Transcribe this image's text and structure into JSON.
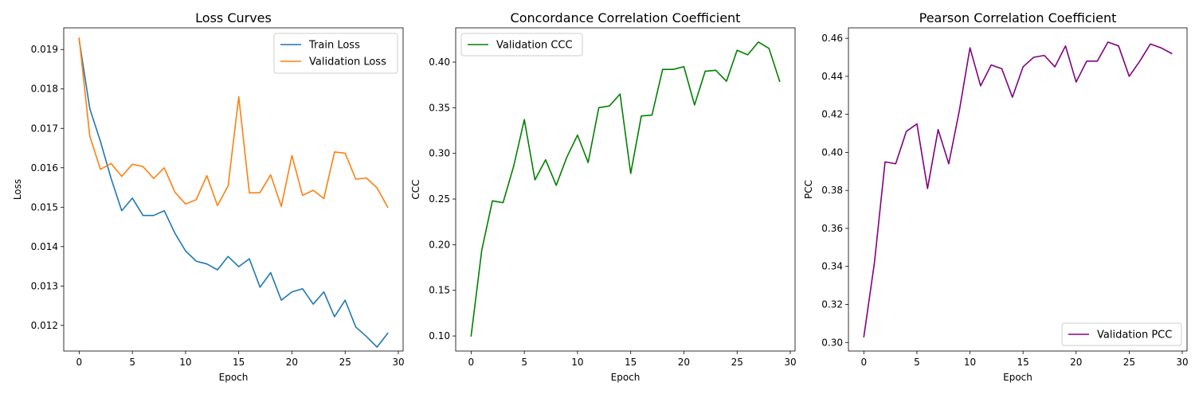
{
  "chart_data": [
    {
      "type": "line",
      "title": "Loss Curves",
      "xlabel": "Epoch",
      "ylabel": "Loss",
      "xlim": [
        -1.45,
        30.45
      ],
      "ylim": [
        0.01135,
        0.01955
      ],
      "xticks": [
        0,
        5,
        10,
        15,
        20,
        25,
        30
      ],
      "yticks": [
        0.012,
        0.013,
        0.014,
        0.015,
        0.016,
        0.017,
        0.018,
        0.019
      ],
      "ytick_decimals": 3,
      "grid": false,
      "legend_position": "top-right",
      "x": [
        0,
        1,
        2,
        3,
        4,
        5,
        6,
        7,
        8,
        9,
        10,
        11,
        12,
        13,
        14,
        15,
        16,
        17,
        18,
        19,
        20,
        21,
        22,
        23,
        24,
        25,
        26,
        27,
        28,
        29
      ],
      "series": [
        {
          "name": "Train Loss",
          "color": "#1f77b4",
          "values": [
            0.01925,
            0.0175,
            0.01667,
            0.01573,
            0.01491,
            0.01523,
            0.01479,
            0.01479,
            0.01491,
            0.01434,
            0.01389,
            0.01363,
            0.01356,
            0.01341,
            0.01375,
            0.01349,
            0.01369,
            0.01297,
            0.01334,
            0.01264,
            0.01285,
            0.01293,
            0.01254,
            0.01285,
            0.01222,
            0.01264,
            0.01196,
            0.01172,
            0.01145,
            0.0118
          ]
        },
        {
          "name": "Validation Loss",
          "color": "#ff7f0e",
          "values": [
            0.01929,
            0.0168,
            0.01596,
            0.01611,
            0.01578,
            0.01609,
            0.01603,
            0.01573,
            0.016,
            0.01538,
            0.01508,
            0.01519,
            0.0158,
            0.01504,
            0.01554,
            0.0178,
            0.01536,
            0.01537,
            0.01582,
            0.01502,
            0.01631,
            0.0153,
            0.01543,
            0.01522,
            0.0164,
            0.01637,
            0.01571,
            0.01574,
            0.01549,
            0.015
          ]
        }
      ]
    },
    {
      "type": "line",
      "title": "Concordance Correlation Coefficient",
      "xlabel": "Epoch",
      "ylabel": "CCC",
      "xlim": [
        -1.45,
        30.45
      ],
      "ylim": [
        0.0835,
        0.4375
      ],
      "xticks": [
        0,
        5,
        10,
        15,
        20,
        25,
        30
      ],
      "yticks": [
        0.1,
        0.15,
        0.2,
        0.25,
        0.3,
        0.35,
        0.4
      ],
      "ytick_decimals": 2,
      "grid": false,
      "legend_position": "top-left",
      "x": [
        0,
        1,
        2,
        3,
        4,
        5,
        6,
        7,
        8,
        9,
        10,
        11,
        12,
        13,
        14,
        15,
        16,
        17,
        18,
        19,
        20,
        21,
        22,
        23,
        24,
        25,
        26,
        27,
        28,
        29
      ],
      "series": [
        {
          "name": "Validation CCC",
          "color": "#008000",
          "values": [
            0.1,
            0.194,
            0.248,
            0.246,
            0.286,
            0.337,
            0.271,
            0.293,
            0.265,
            0.296,
            0.32,
            0.29,
            0.35,
            0.352,
            0.365,
            0.278,
            0.341,
            0.342,
            0.392,
            0.392,
            0.395,
            0.353,
            0.39,
            0.391,
            0.379,
            0.413,
            0.408,
            0.422,
            0.415,
            0.379
          ]
        }
      ]
    },
    {
      "type": "line",
      "title": "Pearson Correlation Coefficient",
      "xlabel": "Epoch",
      "ylabel": "PCC",
      "xlim": [
        -1.45,
        30.45
      ],
      "ylim": [
        0.2955,
        0.4655
      ],
      "xticks": [
        0,
        5,
        10,
        15,
        20,
        25,
        30
      ],
      "yticks": [
        0.3,
        0.32,
        0.34,
        0.36,
        0.38,
        0.4,
        0.42,
        0.44,
        0.46
      ],
      "ytick_decimals": 2,
      "grid": false,
      "legend_position": "bottom-right",
      "x": [
        0,
        1,
        2,
        3,
        4,
        5,
        6,
        7,
        8,
        9,
        10,
        11,
        12,
        13,
        14,
        15,
        16,
        17,
        18,
        19,
        20,
        21,
        22,
        23,
        24,
        25,
        26,
        27,
        28,
        29
      ],
      "series": [
        {
          "name": "Validation PCC",
          "color": "#800080",
          "values": [
            0.303,
            0.342,
            0.395,
            0.394,
            0.411,
            0.415,
            0.381,
            0.412,
            0.394,
            0.422,
            0.455,
            0.435,
            0.446,
            0.444,
            0.429,
            0.445,
            0.45,
            0.451,
            0.445,
            0.456,
            0.437,
            0.448,
            0.448,
            0.458,
            0.456,
            0.44,
            0.448,
            0.457,
            0.455,
            0.452
          ]
        }
      ]
    }
  ]
}
